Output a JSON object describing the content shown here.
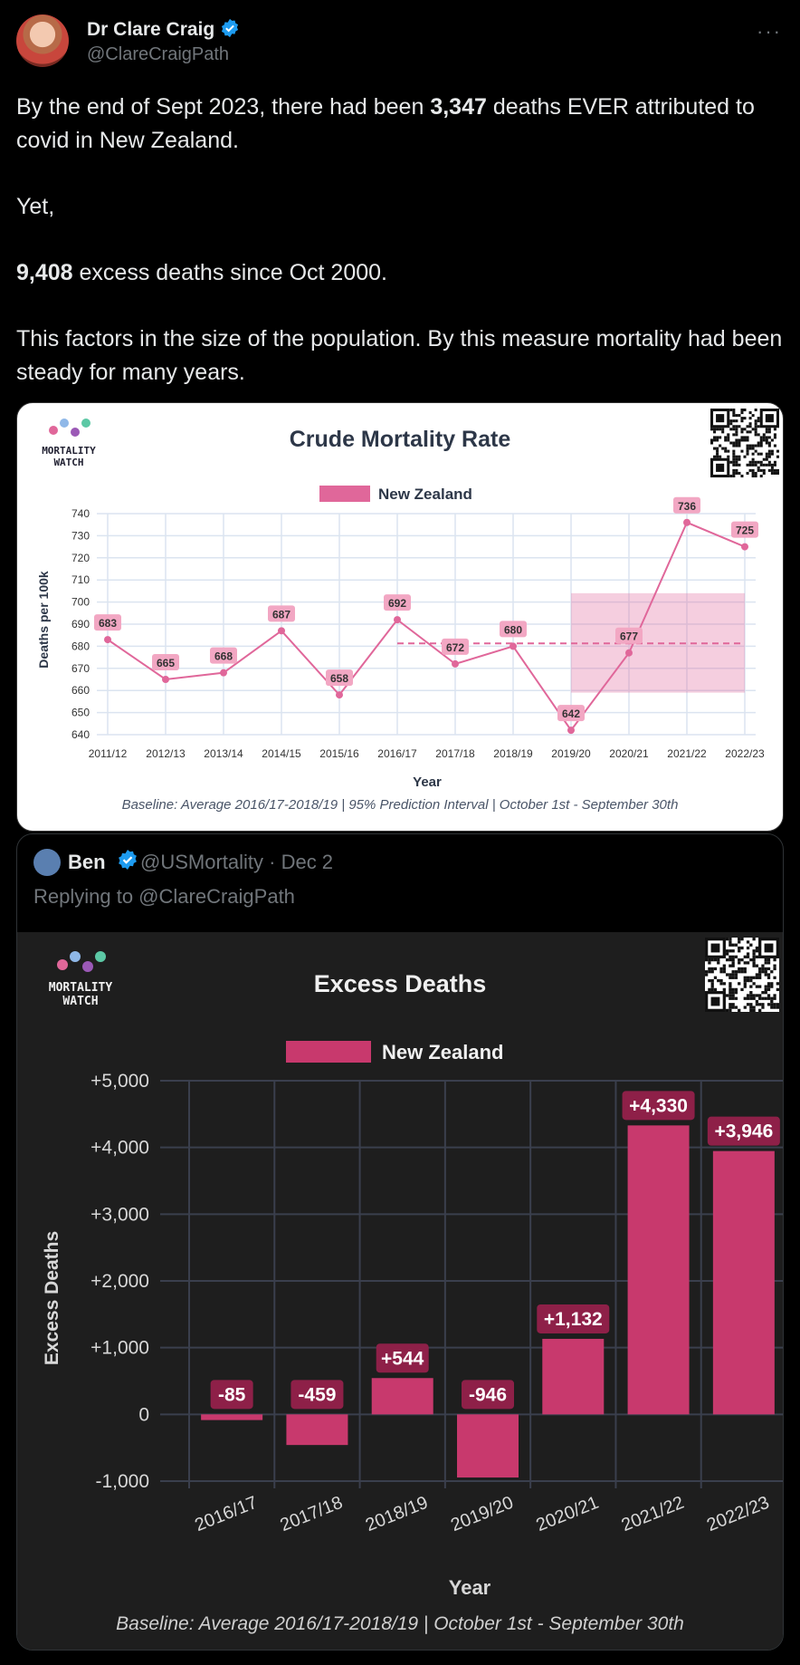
{
  "tweet": {
    "author_name": "Dr Clare Craig",
    "author_handle": "@ClareCraigPath",
    "more_icon": "more-icon",
    "text_line1_a": "By the end of Sept 2023, there had been ",
    "text_line1_b": "3,347",
    "text_line1_c": " deaths EVER attributed to covid in New Zealand.",
    "text_para2": "Yet,",
    "text_para3_a": "9,408",
    "text_para3_b": " excess deaths since Oct 2000.",
    "text_para4": "This factors in the size of the population. By this measure mortality had been steady for many years."
  },
  "card1": {
    "logo_text_line1": "MORTALITY",
    "logo_text_line2": "WATCH",
    "qr_icon": "qr-code-icon",
    "chart_data": {
      "type": "line",
      "title": "Crude Mortality Rate",
      "legend": "New Zealand",
      "ylabel": "Deaths per 100k",
      "xlabel": "Year",
      "categories": [
        "2011/12",
        "2012/13",
        "2013/14",
        "2014/15",
        "2015/16",
        "2016/17",
        "2017/18",
        "2018/19",
        "2019/20",
        "2020/21",
        "2021/22",
        "2022/23"
      ],
      "values": [
        683,
        665,
        668,
        687,
        658,
        692,
        672,
        680,
        642,
        677,
        736,
        725
      ],
      "ylim": [
        640,
        740
      ],
      "yticks": [
        640,
        650,
        660,
        670,
        680,
        690,
        700,
        710,
        720,
        730,
        740
      ],
      "baseline_value": 681.3,
      "prediction_interval": {
        "from_category": "2019/20",
        "to_category": "2022/23",
        "low": 659,
        "high": 704
      },
      "footer": "Baseline: Average 2016/17-2018/19 | 95% Prediction Interval | October 1st - September 30th",
      "line_color": "#e0679a",
      "label_bg": "#f2a7c3"
    }
  },
  "quote": {
    "author_name": "Ben",
    "author_handle": "@USMortality · Dec 2",
    "replying_to": "Replying to @ClareCraigPath",
    "logo_text_line1": "MORTALITY",
    "logo_text_line2": "WATCH",
    "chart_data": {
      "type": "bar",
      "title": "Excess Deaths",
      "legend": "New Zealand",
      "ylabel": "Excess Deaths",
      "xlabel": "Year",
      "categories": [
        "2016/17",
        "2017/18",
        "2018/19",
        "2019/20",
        "2020/21",
        "2021/22",
        "2022/23"
      ],
      "values": [
        -85,
        -459,
        544,
        -946,
        1132,
        4330,
        3946
      ],
      "value_labels": [
        "-85",
        "-459",
        "+544",
        "-946",
        "+1,132",
        "+4,330",
        "+3,946"
      ],
      "ylim": [
        -1000,
        5000
      ],
      "ytick_labels": [
        "-1,000",
        "0",
        "+1,000",
        "+2,000",
        "+3,000",
        "+4,000",
        "+5,000"
      ],
      "ytick_values": [
        -1000,
        0,
        1000,
        2000,
        3000,
        4000,
        5000
      ],
      "footer": "Baseline: Average 2016/17-2018/19 | October 1st - September 30th",
      "bar_color": "#c8396d",
      "label_bg": "#8e2048"
    }
  }
}
